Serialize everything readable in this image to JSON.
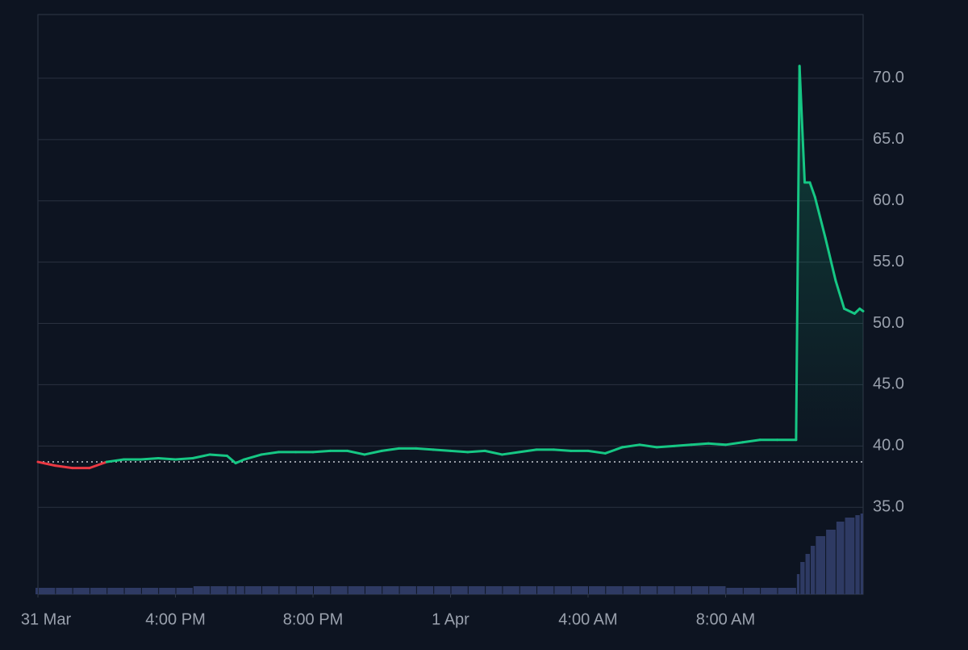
{
  "chart_data": {
    "type": "line",
    "x": [
      0,
      0.5,
      1,
      1.5,
      2,
      2.5,
      3,
      3.5,
      4,
      4.5,
      5,
      5.5,
      5.75,
      6,
      6.5,
      7,
      7.5,
      8,
      8.5,
      9,
      9.5,
      10,
      10.5,
      11,
      11.5,
      12,
      12.5,
      13,
      13.5,
      14,
      14.5,
      15,
      15.5,
      16,
      16.5,
      17,
      17.5,
      18,
      18.5,
      19,
      19.5,
      20,
      20.5,
      21,
      21.5,
      22.05,
      22.15,
      22.3,
      22.45,
      22.6,
      22.9,
      23.2,
      23.45,
      23.75,
      23.9,
      24
    ],
    "values": [
      38.7,
      38.4,
      38.2,
      38.2,
      38.7,
      38.9,
      38.9,
      39.0,
      38.9,
      39.0,
      39.3,
      39.2,
      38.6,
      38.9,
      39.3,
      39.5,
      39.5,
      39.5,
      39.6,
      39.6,
      39.3,
      39.6,
      39.8,
      39.8,
      39.7,
      39.6,
      39.5,
      39.6,
      39.3,
      39.5,
      39.7,
      39.7,
      39.6,
      39.6,
      39.4,
      39.9,
      40.1,
      39.9,
      40.0,
      40.1,
      40.2,
      40.1,
      40.3,
      40.5,
      40.5,
      40.5,
      71.0,
      61.5,
      61.5,
      60.3,
      57.0,
      53.5,
      51.2,
      50.8,
      51.2,
      51.0
    ],
    "volume": [
      8,
      8,
      8,
      8,
      8,
      8,
      8,
      8,
      8,
      8,
      10,
      10,
      10,
      10,
      10,
      10,
      10,
      10,
      10,
      10,
      10,
      10,
      10,
      10,
      10,
      10,
      10,
      10,
      10,
      10,
      10,
      10,
      10,
      10,
      10,
      10,
      10,
      10,
      10,
      10,
      10,
      10,
      8,
      8,
      8,
      8,
      25,
      40,
      50,
      60,
      72,
      80,
      90,
      95,
      98,
      100
    ],
    "baseline": 38.7,
    "up_color": "#16c784",
    "down_color": "#ea3943",
    "volume_color": "#2e3a63",
    "xlim": [
      0,
      24
    ],
    "xticks": [
      {
        "value": 0,
        "label": "31 Mar"
      },
      {
        "value": 4,
        "label": "4:00 PM"
      },
      {
        "value": 8,
        "label": "8:00 PM"
      },
      {
        "value": 12,
        "label": "1 Apr"
      },
      {
        "value": 16,
        "label": "4:00 AM"
      },
      {
        "value": 20,
        "label": "8:00 AM"
      }
    ],
    "ylim": [
      27.9,
      75.2
    ],
    "yticks": [
      {
        "value": 35,
        "label": "35.0"
      },
      {
        "value": 40,
        "label": "40.0"
      },
      {
        "value": 45,
        "label": "45.0"
      },
      {
        "value": 50,
        "label": "50.0"
      },
      {
        "value": 55,
        "label": "55.0"
      },
      {
        "value": 60,
        "label": "60.0"
      },
      {
        "value": 65,
        "label": "65.0"
      },
      {
        "value": 70,
        "label": "70.0"
      }
    ],
    "grid": true
  }
}
